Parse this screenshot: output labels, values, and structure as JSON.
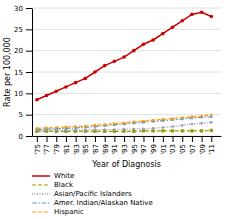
{
  "chart_data": {
    "type": "line",
    "xlabel": "Year of Diagnosis",
    "ylabel": "Rate per 100,000",
    "x": [
      1975,
      1977,
      1979,
      1981,
      1983,
      1985,
      1987,
      1989,
      1991,
      1993,
      1995,
      1997,
      1999,
      2001,
      2003,
      2005,
      2007,
      2009,
      2011
    ],
    "series": [
      {
        "name": "White",
        "color": "#cc0000",
        "marker": "circle",
        "line_style": "solid",
        "values": [
          8.5,
          9.5,
          10.5,
          11.5,
          12.5,
          13.5,
          15.0,
          16.5,
          17.5,
          18.5,
          20.0,
          21.5,
          22.5,
          24.0,
          25.5,
          27.0,
          28.5,
          29.0,
          28.0
        ]
      },
      {
        "name": "Black",
        "color": "#999900",
        "marker": "square",
        "line_style": "dashed",
        "values": [
          1.1,
          1.1,
          1.1,
          1.1,
          1.1,
          1.1,
          1.1,
          1.1,
          1.1,
          1.1,
          1.1,
          1.2,
          1.2,
          1.2,
          1.2,
          1.2,
          1.2,
          1.2,
          1.3
        ]
      },
      {
        "name": "Asian/Pacific Islanders",
        "color": "#9999bb",
        "marker": "point",
        "line_style": "dotted",
        "values": [
          1.3,
          1.3,
          1.4,
          1.4,
          1.4,
          1.4,
          1.5,
          1.5,
          1.5,
          1.6,
          1.6,
          1.7,
          1.8,
          2.0,
          2.2,
          2.5,
          2.8,
          3.0,
          3.2
        ]
      },
      {
        "name": "Amer. Indian/Alaskan Native",
        "color": "#6699cc",
        "marker": "point",
        "line_style": "dashdot",
        "values": [
          1.5,
          1.6,
          1.7,
          1.8,
          1.9,
          2.0,
          2.2,
          2.4,
          2.6,
          2.8,
          3.0,
          3.2,
          3.4,
          3.6,
          3.8,
          4.0,
          4.2,
          4.4,
          4.5
        ]
      },
      {
        "name": "Hispanic",
        "color": "#ff9900",
        "marker": "point",
        "line_style": "dashed",
        "values": [
          1.8,
          1.9,
          2.0,
          2.1,
          2.2,
          2.3,
          2.5,
          2.7,
          2.9,
          3.1,
          3.3,
          3.5,
          3.7,
          3.9,
          4.1,
          4.3,
          4.5,
          4.7,
          4.9
        ]
      }
    ],
    "xlim": [
      1974,
      2013
    ],
    "xticks": [
      {
        "value": 1975,
        "label": "'75"
      },
      {
        "value": 1977,
        "label": "'77"
      },
      {
        "value": 1979,
        "label": "'79"
      },
      {
        "value": 1981,
        "label": "'81"
      },
      {
        "value": 1983,
        "label": "'83"
      },
      {
        "value": 1985,
        "label": "'85"
      },
      {
        "value": 1987,
        "label": "'87"
      },
      {
        "value": 1989,
        "label": "'89"
      },
      {
        "value": 1991,
        "label": "'91"
      },
      {
        "value": 1993,
        "label": "'93"
      },
      {
        "value": 1995,
        "label": "'95"
      },
      {
        "value": 1997,
        "label": "'97"
      },
      {
        "value": 1999,
        "label": "'99"
      },
      {
        "value": 2001,
        "label": "'01"
      },
      {
        "value": 2003,
        "label": "'03"
      },
      {
        "value": 2005,
        "label": "'05"
      },
      {
        "value": 2007,
        "label": "'07"
      },
      {
        "value": 2009,
        "label": "'09"
      },
      {
        "value": 2011,
        "label": "'11"
      }
    ],
    "ylim": [
      0,
      30
    ],
    "yticks": [
      0,
      5,
      10,
      15,
      20,
      25,
      30
    ],
    "grid": "y",
    "legend": "bottom"
  }
}
